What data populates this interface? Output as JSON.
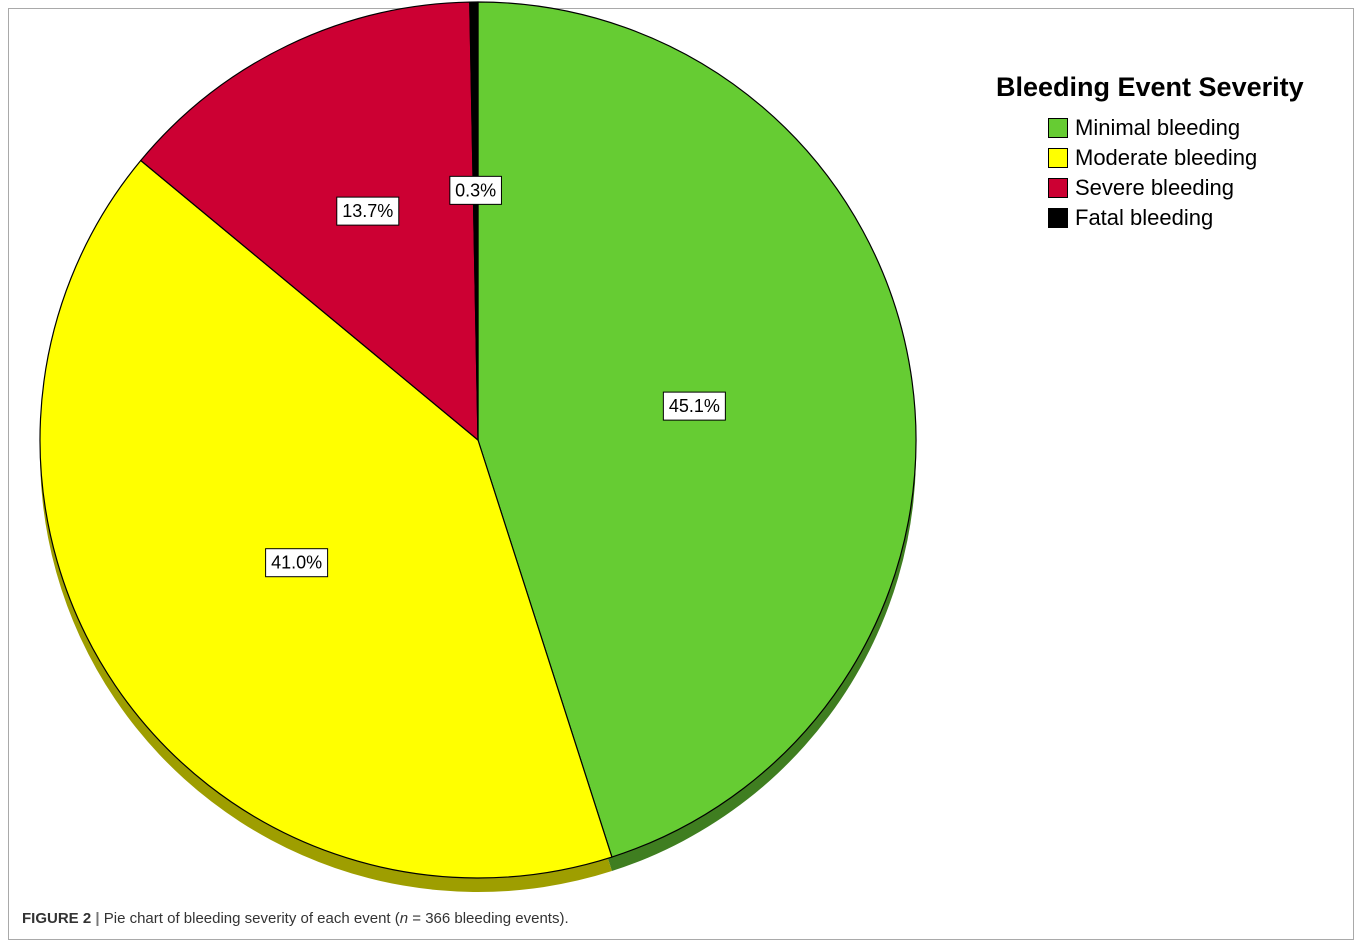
{
  "chart_data": {
    "type": "pie",
    "legend_title": "Bleeding Event Severity",
    "legend_position": "top-right",
    "slices": [
      {
        "name": "Minimal bleeding",
        "value": 45.1,
        "label": "45.1%",
        "color": "#66CC33"
      },
      {
        "name": "Moderate bleeding",
        "value": 41.0,
        "label": "41.0%",
        "color": "#FFFF00"
      },
      {
        "name": "Severe bleeding",
        "value": 13.7,
        "label": "13.7%",
        "color": "#CC0033"
      },
      {
        "name": "Fatal bleeding",
        "value": 0.3,
        "label": "0.3%",
        "color": "#000000"
      }
    ]
  },
  "caption": {
    "figure_label": "FIGURE 2",
    "separator": "|",
    "text_before": "Pie chart of bleeding severity of each event (",
    "n_symbol": "n",
    "text_after": " = 366 bleeding events)."
  }
}
